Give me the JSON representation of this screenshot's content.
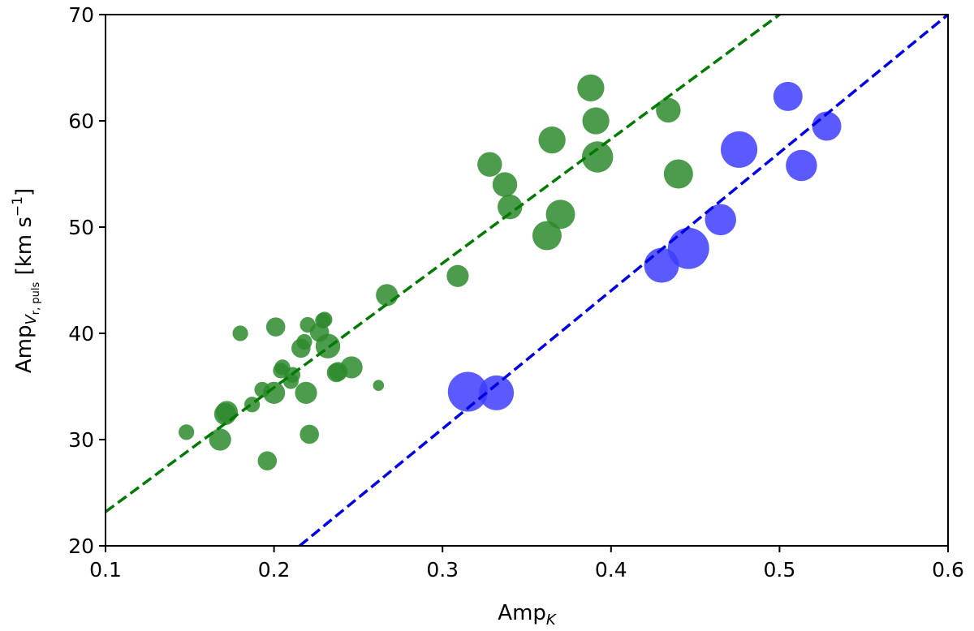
{
  "chart_data": {
    "type": "scatter",
    "title": "",
    "xlabel": {
      "base": "Amp",
      "sub": "K"
    },
    "ylabel": {
      "base": "Amp",
      "sub_v": "V",
      "sub_r": "r, puls",
      "units_pre": " [km s",
      "units_exp": "−1",
      "units_post": "]"
    },
    "xlim": [
      0.1,
      0.6
    ],
    "ylim": [
      20,
      70
    ],
    "xticks": [
      0.1,
      0.2,
      0.3,
      0.4,
      0.5,
      0.6
    ],
    "yticks": [
      20,
      30,
      40,
      50,
      60,
      70
    ],
    "xtick_labels": [
      "0.1",
      "0.2",
      "0.3",
      "0.4",
      "0.5",
      "0.6"
    ],
    "ytick_labels": [
      "20",
      "30",
      "40",
      "50",
      "60",
      "70"
    ],
    "grid": false,
    "series": [
      {
        "color": "#2e8b2e",
        "fit_line": {
          "x": [
            0.1,
            0.5
          ],
          "y": [
            23.2,
            70.0
          ],
          "style": "dashed",
          "color": "#007a00"
        },
        "points": [
          {
            "x": 0.148,
            "y": 30.7,
            "s": 2
          },
          {
            "x": 0.168,
            "y": 30.0,
            "s": 4
          },
          {
            "x": 0.171,
            "y": 32.4,
            "s": 4
          },
          {
            "x": 0.172,
            "y": 32.6,
            "s": 4
          },
          {
            "x": 0.18,
            "y": 40.0,
            "s": 2
          },
          {
            "x": 0.187,
            "y": 33.3,
            "s": 2
          },
          {
            "x": 0.193,
            "y": 34.7,
            "s": 2
          },
          {
            "x": 0.196,
            "y": 28.0,
            "s": 3
          },
          {
            "x": 0.2,
            "y": 34.4,
            "s": 4
          },
          {
            "x": 0.201,
            "y": 40.6,
            "s": 3
          },
          {
            "x": 0.204,
            "y": 36.5,
            "s": 2
          },
          {
            "x": 0.205,
            "y": 36.8,
            "s": 2
          },
          {
            "x": 0.21,
            "y": 35.5,
            "s": 2
          },
          {
            "x": 0.211,
            "y": 36.1,
            "s": 2
          },
          {
            "x": 0.216,
            "y": 38.6,
            "s": 3
          },
          {
            "x": 0.218,
            "y": 39.2,
            "s": 2
          },
          {
            "x": 0.219,
            "y": 34.4,
            "s": 4
          },
          {
            "x": 0.22,
            "y": 40.8,
            "s": 2
          },
          {
            "x": 0.221,
            "y": 30.5,
            "s": 3
          },
          {
            "x": 0.227,
            "y": 40.1,
            "s": 3
          },
          {
            "x": 0.229,
            "y": 41.2,
            "s": 2
          },
          {
            "x": 0.23,
            "y": 41.3,
            "s": 2
          },
          {
            "x": 0.232,
            "y": 38.8,
            "s": 5
          },
          {
            "x": 0.237,
            "y": 36.3,
            "s": 3
          },
          {
            "x": 0.238,
            "y": 36.4,
            "s": 3
          },
          {
            "x": 0.246,
            "y": 36.8,
            "s": 4
          },
          {
            "x": 0.262,
            "y": 35.1,
            "s": 1
          },
          {
            "x": 0.267,
            "y": 43.6,
            "s": 4
          },
          {
            "x": 0.309,
            "y": 45.4,
            "s": 4
          },
          {
            "x": 0.328,
            "y": 55.9,
            "s": 5
          },
          {
            "x": 0.337,
            "y": 54.0,
            "s": 5
          },
          {
            "x": 0.34,
            "y": 51.9,
            "s": 5
          },
          {
            "x": 0.362,
            "y": 49.2,
            "s": 7
          },
          {
            "x": 0.365,
            "y": 58.2,
            "s": 6
          },
          {
            "x": 0.37,
            "y": 51.2,
            "s": 7
          },
          {
            "x": 0.388,
            "y": 63.1,
            "s": 6
          },
          {
            "x": 0.391,
            "y": 60.0,
            "s": 6
          },
          {
            "x": 0.392,
            "y": 56.6,
            "s": 8
          },
          {
            "x": 0.434,
            "y": 61.0,
            "s": 5
          },
          {
            "x": 0.44,
            "y": 55.0,
            "s": 7
          }
        ]
      },
      {
        "color": "#3d3dff",
        "fit_line": {
          "x": [
            0.2152,
            0.6
          ],
          "y": [
            20.0,
            70.0
          ],
          "style": "dashed",
          "color": "#0000e6"
        },
        "points": [
          {
            "x": 0.315,
            "y": 34.5,
            "s": 13
          },
          {
            "x": 0.332,
            "y": 34.4,
            "s": 10
          },
          {
            "x": 0.43,
            "y": 46.4,
            "s": 10
          },
          {
            "x": 0.446,
            "y": 48.0,
            "s": 14
          },
          {
            "x": 0.465,
            "y": 50.7,
            "s": 8
          },
          {
            "x": 0.476,
            "y": 57.3,
            "s": 11
          },
          {
            "x": 0.505,
            "y": 62.3,
            "s": 7
          },
          {
            "x": 0.513,
            "y": 55.8,
            "s": 8
          },
          {
            "x": 0.528,
            "y": 59.5,
            "s": 7
          }
        ]
      }
    ]
  }
}
